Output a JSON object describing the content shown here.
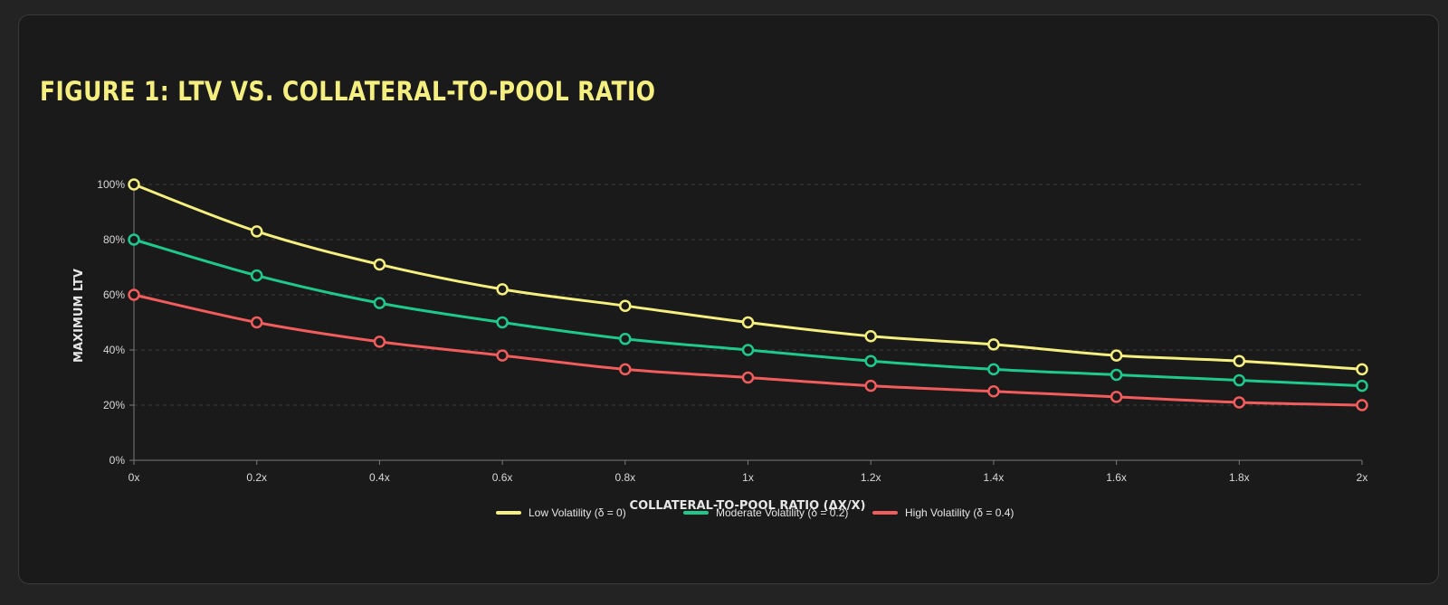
{
  "card": {
    "title": "FIGURE 1: LTV VS. COLLATERAL-TO-POOL RATIO"
  },
  "colors": {
    "title": "#f4ef7e",
    "grid": "#3c3c3c",
    "axis": "#7a7a7a"
  },
  "chart_data": {
    "type": "line",
    "title": "FIGURE 1: LTV VS. COLLATERAL-TO-POOL RATIO",
    "xlabel": "COLLATERAL-TO-POOL RATIO (ΔX/X)",
    "ylabel": "MAXIMUM LTV",
    "x": [
      0,
      0.2,
      0.4,
      0.6,
      0.8,
      1.0,
      1.2,
      1.4,
      1.6,
      1.8,
      2.0
    ],
    "x_tick_labels": [
      "0x",
      "0.2x",
      "0.4x",
      "0.6x",
      "0.8x",
      "1x",
      "1.2x",
      "1.4x",
      "1.6x",
      "1.8x",
      "2x"
    ],
    "y_ticks": [
      0,
      20,
      40,
      60,
      80,
      100
    ],
    "y_tick_labels": [
      "0%",
      "20%",
      "40%",
      "60%",
      "80%",
      "100%"
    ],
    "xlim": [
      0,
      2
    ],
    "ylim": [
      0,
      100
    ],
    "grid": "horizontal dashed",
    "legend_position": "bottom",
    "series": [
      {
        "name": "Low Volatility (δ = 0)",
        "color": "#f4ef7e",
        "values": [
          100,
          83,
          71,
          62,
          56,
          50,
          45,
          42,
          38,
          36,
          33
        ]
      },
      {
        "name": "Moderate Volatility (δ = 0.2)",
        "color": "#1ec98d",
        "values": [
          80,
          67,
          57,
          50,
          44,
          40,
          36,
          33,
          31,
          29,
          27
        ]
      },
      {
        "name": "High Volatility (δ = 0.4)",
        "color": "#f25c5c",
        "values": [
          60,
          50,
          43,
          38,
          33,
          30,
          27,
          25,
          23,
          21,
          20
        ]
      }
    ]
  }
}
